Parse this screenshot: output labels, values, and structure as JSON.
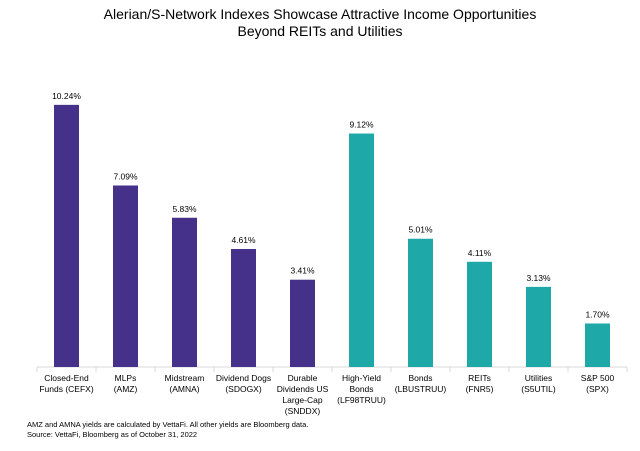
{
  "chart_data": {
    "type": "bar",
    "title_lines": [
      "Alerian/S-Network Indexes Showcase Attractive Income Opportunities",
      "Beyond REITs and Utilities"
    ],
    "categories": [
      [
        "Closed-End",
        "Funds (CEFX)"
      ],
      [
        "MLPs",
        "(AMZ)"
      ],
      [
        "Midstream",
        "(AMNA)"
      ],
      [
        "Dividend Dogs",
        "(SDOGX)"
      ],
      [
        "Durable",
        "Dividends US",
        "Large-Cap",
        "(SNDDX)"
      ],
      [
        "High-Yield",
        "Bonds",
        "(LF98TRUU)"
      ],
      [
        "Bonds",
        "(LBUSTRUU)"
      ],
      [
        "REITs",
        "(FNR5)"
      ],
      [
        "Utilities",
        "(S5UTIL)"
      ],
      [
        "S&P 500",
        "(SPX)"
      ]
    ],
    "values": [
      10.24,
      7.09,
      5.83,
      4.61,
      3.41,
      9.12,
      5.01,
      4.11,
      3.13,
      1.7
    ],
    "data_labels": [
      "10.24%",
      "7.09%",
      "5.83%",
      "4.61%",
      "3.41%",
      "9.12%",
      "5.01%",
      "4.11%",
      "3.13%",
      "1.70%"
    ],
    "bar_colors": [
      "#45318a",
      "#45318a",
      "#45318a",
      "#45318a",
      "#45318a",
      "#1fa8a8",
      "#1fa8a8",
      "#1fa8a8",
      "#1fa8a8",
      "#1fa8a8"
    ],
    "xlabel": "",
    "ylabel": "",
    "ylim": [
      0,
      10.24
    ],
    "grid": false
  },
  "notes": [
    "AMZ and AMNA yields are calculated by VettaFi. All other yields are Bloomberg data.",
    "Source: VettaFi, Bloomberg as of October 31, 2022"
  ]
}
